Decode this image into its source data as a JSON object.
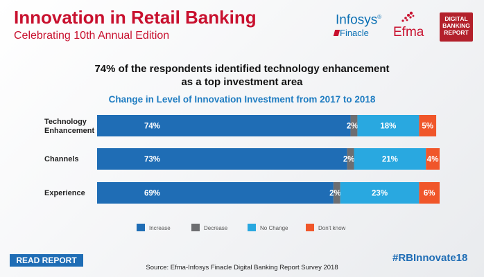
{
  "header": {
    "title": "Innovation in Retail Banking",
    "subtitle": "Celebrating 10th Annual Edition"
  },
  "logos": {
    "infosys_brand": "Infosys",
    "infosys_product": "Finacle",
    "efma": "Efma",
    "dbr_line1": "DIGITAL",
    "dbr_line2": "BANKING",
    "dbr_line3": "REPORT"
  },
  "headline": {
    "line1": "74% of the respondents identified technology enhancement",
    "line2": "as a top investment area"
  },
  "chart_data": {
    "type": "bar",
    "orientation": "horizontal",
    "stacked": true,
    "title": "Change in Level of Innovation Investment from 2017 to 2018",
    "categories": [
      {
        "line1": "Technology",
        "line2": "Enhancement"
      },
      {
        "line1": "Channels",
        "line2": ""
      },
      {
        "line1": "Experience",
        "line2": ""
      }
    ],
    "series": [
      {
        "name": "Increase",
        "color": "#1f6db5",
        "values": [
          74,
          73,
          69
        ],
        "labels": [
          "74%",
          "73%",
          "69%"
        ]
      },
      {
        "name": "Decrease",
        "color": "#6d6e71",
        "values": [
          2,
          2,
          2
        ],
        "labels": [
          "2%",
          "2%",
          "2%"
        ]
      },
      {
        "name": "No Change",
        "color": "#29a8e0",
        "values": [
          18,
          21,
          23
        ],
        "labels": [
          "18%",
          "21%",
          "23%"
        ]
      },
      {
        "name": "Don't know",
        "color": "#f0562a",
        "values": [
          5,
          4,
          6
        ],
        "labels": [
          "5%",
          "4%",
          "6%"
        ]
      }
    ],
    "xlim": [
      0,
      100
    ],
    "legend_position": "bottom",
    "grid": false
  },
  "footer": {
    "read_report": "READ REPORT",
    "source": "Source: Efma-Infosys Finacle Digital Banking Report Survey 2018",
    "hashtag": "#RBInnovate18"
  }
}
